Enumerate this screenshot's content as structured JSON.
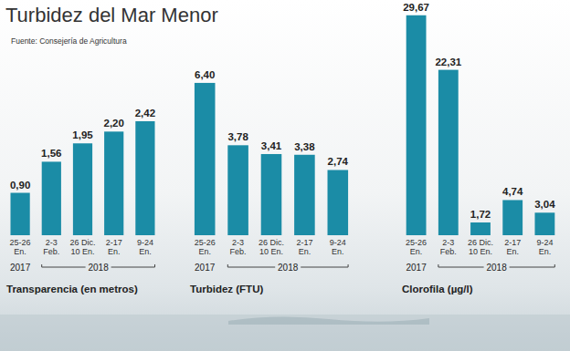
{
  "title": "Turbidez del Mar Menor",
  "source": "Fuente: Consejería de Agricultura",
  "chart_data": [
    {
      "type": "bar",
      "xlabel": "Transparencia (en metros)",
      "categories": [
        [
          "25-26",
          "En."
        ],
        [
          "2-3",
          "Feb."
        ],
        [
          "26 Dic.",
          "10 En."
        ],
        [
          "2-17",
          "En."
        ],
        [
          "9-24",
          "En."
        ]
      ],
      "groups": [
        {
          "label": "2017",
          "count": 1
        },
        {
          "label": "2018",
          "count": 4
        }
      ],
      "values": [
        0.9,
        1.56,
        1.95,
        2.2,
        2.42
      ],
      "value_labels": [
        "0,90",
        "1,56",
        "1,95",
        "2,20",
        "2,42"
      ],
      "color": "#1b8ca6",
      "ylim": [
        0,
        4.8
      ],
      "data_labels": true,
      "tick_labels": "x"
    },
    {
      "type": "bar",
      "xlabel": "Turbidez (FTU)",
      "categories": [
        [
          "25-26",
          "En."
        ],
        [
          "2-3",
          "Feb."
        ],
        [
          "26 Dic.",
          "10 En."
        ],
        [
          "2-17",
          "En."
        ],
        [
          "9-24",
          "En."
        ]
      ],
      "groups": [
        {
          "label": "2017",
          "count": 1
        },
        {
          "label": "2018",
          "count": 4
        }
      ],
      "values": [
        6.4,
        3.78,
        3.41,
        3.38,
        2.74
      ],
      "value_labels": [
        "6,40",
        "3,78",
        "3,41",
        "3,38",
        "2,74"
      ],
      "color": "#1b8ca6",
      "ylim": [
        0,
        9.5
      ],
      "data_labels": true,
      "tick_labels": "x"
    },
    {
      "type": "bar",
      "xlabel": "Clorofila (µg/l)",
      "categories": [
        [
          "25-26",
          "En."
        ],
        [
          "2-3",
          "Feb."
        ],
        [
          "26 Dic.",
          "10 En."
        ],
        [
          "2-17",
          "En."
        ],
        [
          "9-24",
          "En."
        ]
      ],
      "groups": [
        {
          "label": "2017",
          "count": 1
        },
        {
          "label": "2018",
          "count": 4
        }
      ],
      "values": [
        29.67,
        22.31,
        1.72,
        4.74,
        3.04
      ],
      "value_labels": [
        "29,67",
        "22,31",
        "1,72",
        "4,74",
        "3,04"
      ],
      "color": "#1b8ca6",
      "ylim": [
        0,
        30.5
      ],
      "data_labels": true,
      "tick_labels": "x"
    }
  ]
}
